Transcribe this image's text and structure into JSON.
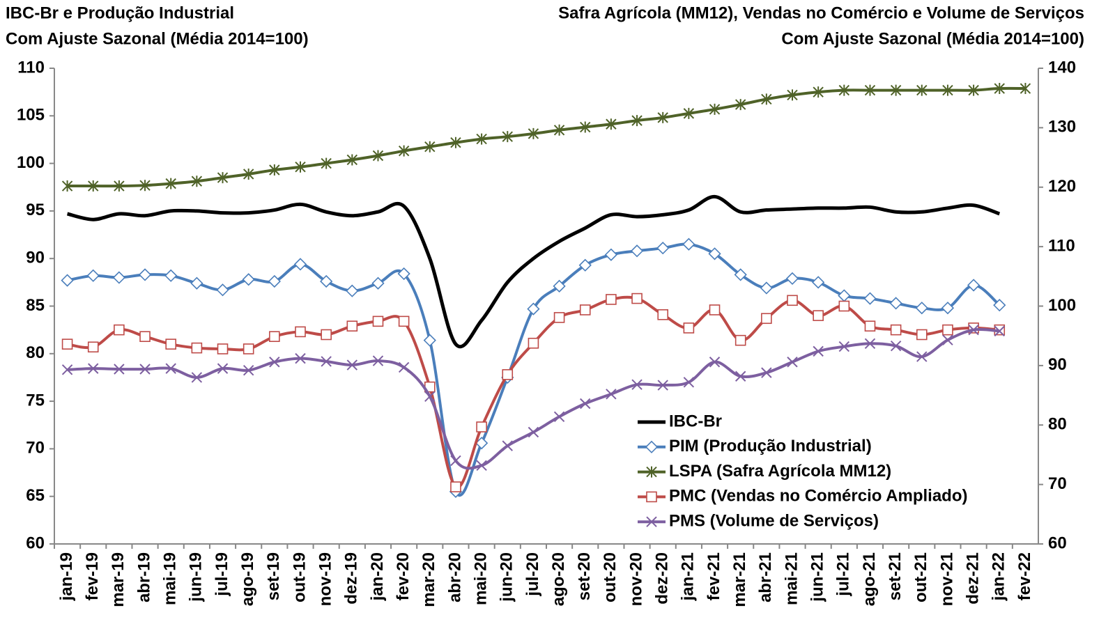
{
  "chart_data": {
    "type": "line",
    "left_title": [
      "IBC-Br e Produção Industrial",
      "Com Ajuste Sazonal (Média 2014=100)"
    ],
    "right_title": [
      "Safra Agrícola (MM12), Vendas no Comércio e Volume de Serviços",
      "Com Ajuste Sazonal (Média 2014=100)"
    ],
    "categories": [
      "jan-19",
      "fev-19",
      "mar-19",
      "abr-19",
      "mai-19",
      "jun-19",
      "jul-19",
      "ago-19",
      "set-19",
      "out-19",
      "nov-19",
      "dez-19",
      "jan-20",
      "fev-20",
      "mar-20",
      "abr-20",
      "mai-20",
      "jun-20",
      "jul-20",
      "ago-20",
      "set-20",
      "out-20",
      "nov-20",
      "dez-20",
      "jan-21",
      "fev-21",
      "mar-21",
      "abr-21",
      "mai-21",
      "jun-21",
      "jul-21",
      "ago-21",
      "set-21",
      "out-21",
      "nov-21",
      "dez-21",
      "jan-22",
      "fev-22"
    ],
    "ylim": [
      60,
      110
    ],
    "yticks": [
      60,
      65,
      70,
      75,
      80,
      85,
      90,
      95,
      100,
      105,
      110
    ],
    "y2lim": [
      60,
      140
    ],
    "y2ticks": [
      60,
      70,
      80,
      90,
      100,
      110,
      120,
      130,
      140
    ],
    "grid": false,
    "legend_position": "lower right",
    "series": [
      {
        "name": "IBC-Br",
        "color": "#000000",
        "marker": "none",
        "axis": "y",
        "values": [
          94.7,
          94.1,
          94.7,
          94.5,
          95.0,
          95.0,
          94.8,
          94.8,
          95.1,
          95.7,
          94.9,
          94.5,
          94.9,
          95.5,
          90.0,
          81.0,
          83.5,
          87.5,
          90.0,
          91.8,
          93.2,
          94.6,
          94.4,
          94.6,
          95.1,
          96.5,
          94.9,
          95.1,
          95.2,
          95.3,
          95.3,
          95.4,
          94.9,
          94.9,
          95.3,
          95.6,
          94.7,
          null
        ]
      },
      {
        "name": "PIM (Produção Industrial)",
        "color": "#4a7ebb",
        "marker": "diamond",
        "axis": "y",
        "values": [
          87.7,
          88.2,
          88.0,
          88.3,
          88.2,
          87.4,
          86.7,
          87.8,
          87.6,
          89.4,
          87.6,
          86.6,
          87.4,
          88.4,
          81.4,
          65.5,
          70.6,
          77.5,
          84.7,
          87.1,
          89.3,
          90.4,
          90.8,
          91.1,
          91.5,
          90.5,
          88.3,
          86.9,
          87.9,
          87.5,
          86.1,
          85.8,
          85.3,
          84.8,
          84.8,
          87.2,
          85.1,
          null
        ]
      },
      {
        "name": "LSPA (Safra Agrícola MM12)",
        "color": "#4f6228",
        "marker": "asterisk",
        "axis": "y2",
        "values": [
          120.2,
          120.2,
          120.2,
          120.3,
          120.6,
          121.0,
          121.6,
          122.2,
          122.9,
          123.4,
          124.0,
          124.6,
          125.3,
          126.1,
          126.8,
          127.5,
          128.1,
          128.5,
          129.0,
          129.6,
          130.1,
          130.6,
          131.2,
          131.7,
          132.4,
          133.1,
          133.9,
          134.8,
          135.5,
          136.0,
          136.3,
          136.3,
          136.3,
          136.3,
          136.3,
          136.3,
          136.6,
          136.6
        ]
      },
      {
        "name": "PMC (Vendas no Comércio Ampliado)",
        "color": "#be4b48",
        "marker": "square",
        "axis": "y",
        "values": [
          81.0,
          80.7,
          82.5,
          81.8,
          81.0,
          80.6,
          80.5,
          80.5,
          81.8,
          82.3,
          82.0,
          82.9,
          83.4,
          83.4,
          76.5,
          66.0,
          72.3,
          77.8,
          81.1,
          83.8,
          84.6,
          85.7,
          85.8,
          84.1,
          82.7,
          84.6,
          81.4,
          83.7,
          85.6,
          84.0,
          85.0,
          82.9,
          82.5,
          82.0,
          82.5,
          82.7,
          82.5,
          null
        ]
      },
      {
        "name": "PMS (Volume de Serviços)",
        "color": "#7d5fa0",
        "marker": "x",
        "axis": "y2",
        "values": [
          89.3,
          89.5,
          89.4,
          89.4,
          89.5,
          88.0,
          89.5,
          89.2,
          90.6,
          91.2,
          90.7,
          90.1,
          90.8,
          89.7,
          84.8,
          74.0,
          73.2,
          76.5,
          78.8,
          81.4,
          83.6,
          85.2,
          86.8,
          86.7,
          87.2,
          90.6,
          88.2,
          88.8,
          90.6,
          92.4,
          93.2,
          93.7,
          93.3,
          91.5,
          94.3,
          96.0,
          95.8,
          null
        ]
      }
    ]
  }
}
